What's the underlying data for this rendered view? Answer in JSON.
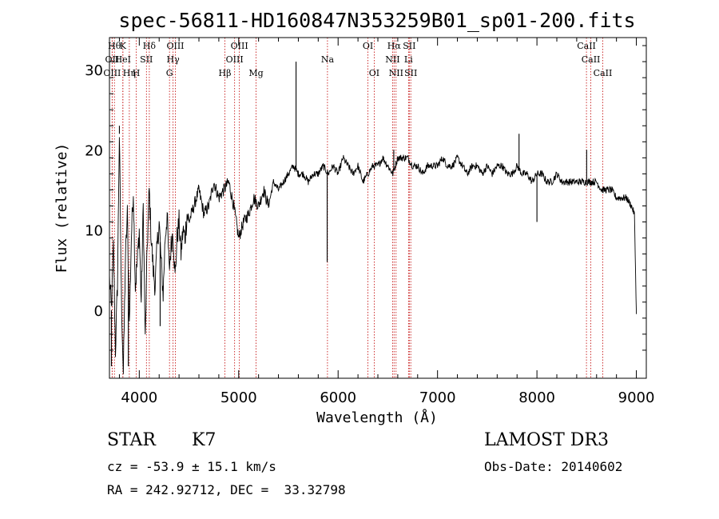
{
  "chart_data": {
    "type": "line",
    "title": "spec-56811-HD160847N353259B01_sp01-200.fits",
    "xlabel": "Wavelength (Å)",
    "ylabel": "Flux (relative)",
    "xlim": [
      3700,
      9100
    ],
    "ylim": [
      -8.5,
      34
    ],
    "x_ticks": [
      4000,
      5000,
      6000,
      7000,
      8000,
      9000
    ],
    "y_ticks": [
      0,
      10,
      20,
      30
    ],
    "series": [
      {
        "name": "spectrum",
        "x": [
          3700,
          3720,
          3740,
          3760,
          3780,
          3800,
          3820,
          3840,
          3860,
          3880,
          3900,
          3920,
          3940,
          3960,
          3980,
          4000,
          4020,
          4040,
          4060,
          4080,
          4100,
          4120,
          4140,
          4160,
          4180,
          4200,
          4220,
          4240,
          4260,
          4280,
          4300,
          4320,
          4340,
          4360,
          4380,
          4400,
          4420,
          4440,
          4460,
          4480,
          4500,
          4550,
          4600,
          4650,
          4700,
          4750,
          4800,
          4850,
          4900,
          4950,
          5000,
          5050,
          5100,
          5150,
          5200,
          5250,
          5300,
          5350,
          5400,
          5450,
          5500,
          5550,
          5600,
          5650,
          5700,
          5750,
          5800,
          5850,
          5900,
          5950,
          6000,
          6050,
          6100,
          6150,
          6200,
          6250,
          6300,
          6350,
          6400,
          6450,
          6500,
          6550,
          6600,
          6650,
          6700,
          6750,
          6800,
          6850,
          6900,
          6950,
          7000,
          7050,
          7100,
          7150,
          7200,
          7250,
          7300,
          7350,
          7400,
          7450,
          7500,
          7550,
          7600,
          7650,
          7700,
          7750,
          7800,
          7850,
          7900,
          7950,
          8000,
          8050,
          8100,
          8150,
          8200,
          8250,
          8300,
          8350,
          8400,
          8450,
          8500,
          8550,
          8600,
          8650,
          8700,
          8750,
          8800,
          8850,
          8900,
          8950,
          8980,
          9000
        ],
        "y": [
          4,
          0,
          8,
          -5,
          3,
          22,
          2,
          -8,
          6,
          12,
          -2,
          9,
          15,
          3,
          6,
          10,
          1,
          13,
          -4,
          8,
          15,
          9,
          5,
          3,
          8,
          11,
          6,
          2,
          9,
          12,
          5,
          8,
          10,
          4,
          9,
          11,
          7,
          10,
          9,
          12,
          11,
          13,
          15,
          12,
          13,
          16,
          14,
          15,
          16,
          13,
          9,
          11,
          12,
          14,
          13,
          15,
          13,
          16,
          15,
          16,
          17,
          18,
          17,
          17,
          16,
          17,
          17,
          18,
          17,
          18,
          17,
          19,
          18,
          17,
          18,
          16,
          17,
          18,
          18,
          19,
          18,
          17,
          19,
          19,
          19,
          18,
          18,
          17,
          18,
          18,
          18,
          19,
          18,
          18,
          19,
          18,
          17,
          18,
          18,
          17,
          18,
          17,
          18,
          18,
          17,
          17,
          18,
          17,
          17,
          16,
          17,
          17,
          16,
          16,
          17,
          16,
          16,
          16,
          16,
          16,
          16,
          16,
          16,
          15,
          15,
          15,
          14,
          14,
          14,
          13,
          12,
          -0.5
        ]
      }
    ],
    "spikes": [
      {
        "x": 3720,
        "y": -7
      },
      {
        "x": 3800,
        "y": 23
      },
      {
        "x": 3840,
        "y": -8
      },
      {
        "x": 3890,
        "y": -7
      },
      {
        "x": 4210,
        "y": -2
      },
      {
        "x": 5577,
        "y": 31
      },
      {
        "x": 5890,
        "y": 6
      },
      {
        "x": 6560,
        "y": 20
      },
      {
        "x": 7820,
        "y": 22
      },
      {
        "x": 8000,
        "y": 11
      },
      {
        "x": 8500,
        "y": 20
      }
    ],
    "line_labels": [
      {
        "x": 3750,
        "label": "Hθ",
        "row": 0
      },
      {
        "x": 3727,
        "label": "OII",
        "row": 1
      },
      {
        "x": 3727,
        "label": "OIII",
        "row": 2
      },
      {
        "x": 3835,
        "label": "K",
        "row": 0
      },
      {
        "x": 3835,
        "label": "HeI",
        "row": 1
      },
      {
        "x": 3900,
        "label": "Hη",
        "row": 2
      },
      {
        "x": 3970,
        "label": "H",
        "row": 2
      },
      {
        "x": 4101,
        "label": "Hδ",
        "row": 0
      },
      {
        "x": 4072,
        "label": "SII",
        "row": 1
      },
      {
        "x": 4363,
        "label": "OIII",
        "row": 0
      },
      {
        "x": 4340,
        "label": "Hγ",
        "row": 1
      },
      {
        "x": 4304,
        "label": "G",
        "row": 2
      },
      {
        "x": 5007,
        "label": "OIII",
        "row": 0
      },
      {
        "x": 4959,
        "label": "OIII",
        "row": 1
      },
      {
        "x": 4861,
        "label": "Hβ",
        "row": 2
      },
      {
        "x": 5175,
        "label": "Mg",
        "row": 2
      },
      {
        "x": 5893,
        "label": "Na",
        "row": 1
      },
      {
        "x": 6300,
        "label": "OI",
        "row": 0
      },
      {
        "x": 6363,
        "label": "OI",
        "row": 2
      },
      {
        "x": 6563,
        "label": "Hα",
        "row": 0
      },
      {
        "x": 6716,
        "label": "SII",
        "row": 0
      },
      {
        "x": 6548,
        "label": "NII",
        "row": 1
      },
      {
        "x": 6708,
        "label": "Li",
        "row": 1
      },
      {
        "x": 6583,
        "label": "NII",
        "row": 2
      },
      {
        "x": 6731,
        "label": "SII",
        "row": 2
      },
      {
        "x": 8498,
        "label": "CaII",
        "row": 0
      },
      {
        "x": 8542,
        "label": "CaII",
        "row": 1
      },
      {
        "x": 8662,
        "label": "CaII",
        "row": 2
      }
    ]
  },
  "info": {
    "class_label": "STAR",
    "subclass": "K7",
    "redshift_text": "cz = -53.9 ± 15.1 km/s",
    "coords_text": "RA = 242.92712, DEC =  33.32798",
    "survey": "LAMOST DR3",
    "obs_date_text": "Obs-Date: 20140602"
  },
  "colors": {
    "spectrum": "#000000",
    "line_markers": "#c00000",
    "axes": "#000000"
  }
}
